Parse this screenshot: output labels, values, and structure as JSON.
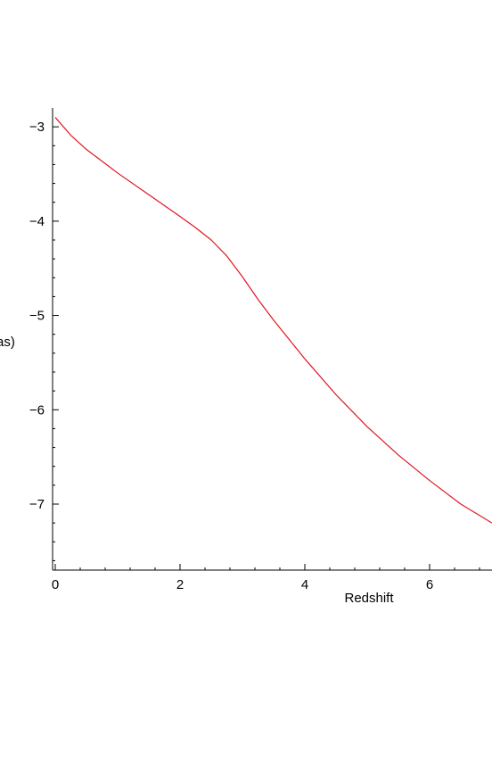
{
  "chart_data": {
    "type": "line",
    "title": "",
    "xlabel": "Redshift",
    "ylabel": "as)",
    "xlim": [
      0,
      7
    ],
    "ylim": [
      -7.7,
      -2.8
    ],
    "xticks": [
      0,
      2,
      4,
      6
    ],
    "yticks": [
      -3,
      -4,
      -5,
      -6,
      -7
    ],
    "xtick_labels": [
      "0",
      "2",
      "4",
      "6"
    ],
    "ytick_labels": [
      "−3",
      "−4",
      "−5",
      "−6",
      "−7"
    ],
    "grid": false,
    "series": [
      {
        "color": "#e0161e",
        "x": [
          0,
          0.25,
          0.5,
          1,
          1.5,
          2,
          2.25,
          2.5,
          2.75,
          3,
          3.25,
          3.5,
          4,
          4.5,
          5,
          5.5,
          6,
          6.5,
          7
        ],
        "y": [
          -2.9,
          -3.09,
          -3.24,
          -3.49,
          -3.72,
          -3.95,
          -4.07,
          -4.2,
          -4.37,
          -4.59,
          -4.83,
          -5.05,
          -5.46,
          -5.84,
          -6.18,
          -6.48,
          -6.75,
          -7.0,
          -7.2
        ]
      }
    ]
  }
}
